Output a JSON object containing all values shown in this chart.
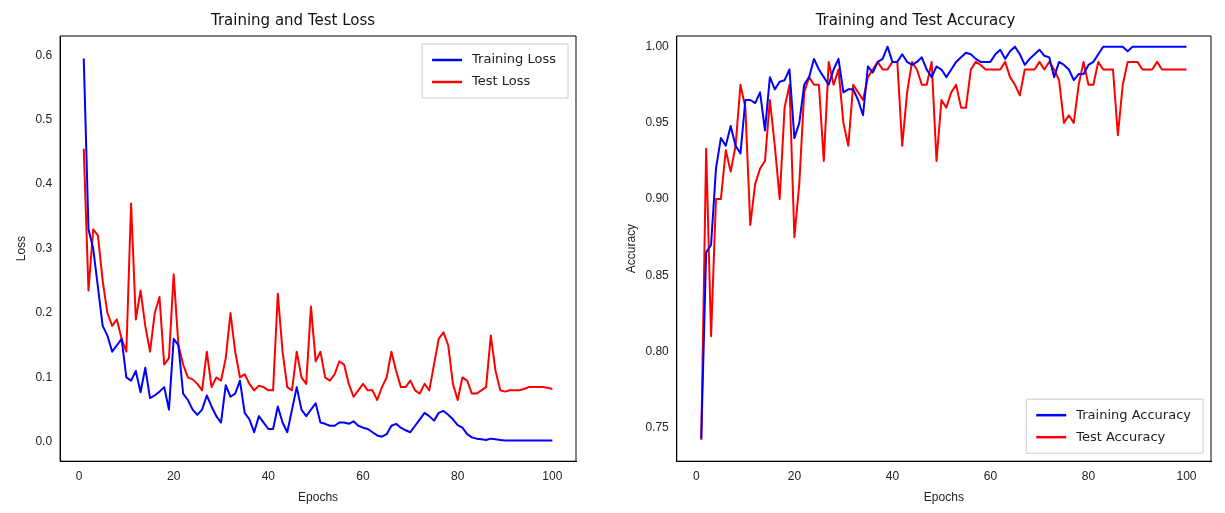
{
  "chart_data": [
    {
      "type": "line",
      "title": "Training and Test Loss",
      "xlabel": "Epochs",
      "ylabel": "Loss",
      "legend": "top right",
      "grid": false,
      "x": [
        1,
        2,
        3,
        4,
        5,
        6,
        7,
        8,
        9,
        10,
        11,
        12,
        13,
        14,
        15,
        16,
        17,
        18,
        19,
        20,
        21,
        22,
        23,
        24,
        25,
        26,
        27,
        28,
        29,
        30,
        31,
        32,
        33,
        34,
        35,
        36,
        37,
        38,
        39,
        40,
        41,
        42,
        43,
        44,
        45,
        46,
        47,
        48,
        49,
        50,
        51,
        52,
        53,
        54,
        55,
        56,
        57,
        58,
        59,
        60,
        61,
        62,
        63,
        64,
        65,
        66,
        67,
        68,
        69,
        70,
        71,
        72,
        73,
        74,
        75,
        76,
        77,
        78,
        79,
        80,
        81,
        82,
        83,
        84,
        85,
        86,
        87,
        88,
        89,
        90,
        91,
        92,
        93,
        94,
        95,
        96,
        97,
        98,
        99,
        100
      ],
      "xlim": [
        -4,
        105
      ],
      "xticks": [
        0,
        20,
        40,
        60,
        80,
        100
      ],
      "ylim": [
        -0.03,
        0.63
      ],
      "yticks": [
        {
          "value": 0,
          "label": "0.0"
        },
        {
          "value": 0.1,
          "label": "0.1"
        },
        {
          "value": 0.2,
          "label": "0.2"
        },
        {
          "value": 0.3,
          "label": "0.3"
        },
        {
          "value": 0.4,
          "label": "0.4"
        },
        {
          "value": 0.5,
          "label": "0.5"
        },
        {
          "value": 0.6,
          "label": "0.6"
        }
      ],
      "series": [
        {
          "name": "Training Loss",
          "color": "#0000ff",
          "values": [
            0.595,
            0.33,
            0.3,
            0.24,
            0.18,
            0.165,
            0.14,
            0.15,
            0.16,
            0.1,
            0.095,
            0.11,
            0.077,
            0.115,
            0.068,
            0.072,
            0.078,
            0.085,
            0.05,
            0.16,
            0.15,
            0.075,
            0.065,
            0.05,
            0.042,
            0.05,
            0.072,
            0.055,
            0.04,
            0.03,
            0.088,
            0.07,
            0.075,
            0.095,
            0.045,
            0.035,
            0.015,
            0.04,
            0.03,
            0.02,
            0.02,
            0.055,
            0.03,
            0.015,
            0.05,
            0.085,
            0.05,
            0.04,
            0.05,
            0.06,
            0.03,
            0.028,
            0.025,
            0.025,
            0.03,
            0.03,
            0.028,
            0.032,
            0.025,
            0.022,
            0.02,
            0.015,
            0.01,
            0.008,
            0.012,
            0.025,
            0.028,
            0.022,
            0.018,
            0.015,
            0.025,
            0.035,
            0.045,
            0.04,
            0.033,
            0.045,
            0.048,
            0.042,
            0.035,
            0.026,
            0.022,
            0.012,
            0.007,
            0.005,
            0.004,
            0.003,
            0.005,
            0.004,
            0.003,
            0.002,
            0.002,
            0.002,
            0.002,
            0.002,
            0.002,
            0.002,
            0.002,
            0.002,
            0.002,
            0.002
          ]
        },
        {
          "name": "Test Loss",
          "color": "#ff0000",
          "values": [
            0.455,
            0.235,
            0.33,
            0.32,
            0.25,
            0.2,
            0.18,
            0.19,
            0.16,
            0.14,
            0.37,
            0.19,
            0.235,
            0.18,
            0.14,
            0.2,
            0.225,
            0.12,
            0.13,
            0.26,
            0.15,
            0.12,
            0.1,
            0.097,
            0.09,
            0.08,
            0.14,
            0.085,
            0.1,
            0.095,
            0.13,
            0.2,
            0.14,
            0.1,
            0.105,
            0.09,
            0.08,
            0.087,
            0.085,
            0.08,
            0.08,
            0.23,
            0.14,
            0.085,
            0.08,
            0.14,
            0.1,
            0.09,
            0.21,
            0.125,
            0.14,
            0.1,
            0.095,
            0.105,
            0.125,
            0.12,
            0.09,
            0.07,
            0.08,
            0.09,
            0.08,
            0.08,
            0.065,
            0.085,
            0.1,
            0.14,
            0.11,
            0.085,
            0.085,
            0.095,
            0.08,
            0.075,
            0.09,
            0.08,
            0.12,
            0.16,
            0.17,
            0.15,
            0.09,
            0.065,
            0.1,
            0.095,
            0.075,
            0.075,
            0.08,
            0.085,
            0.165,
            0.11,
            0.08,
            0.078,
            0.08,
            0.08,
            0.08,
            0.082,
            0.085,
            0.085,
            0.085,
            0.085,
            0.084,
            0.082
          ]
        }
      ]
    },
    {
      "type": "line",
      "title": "Training and Test Accuracy",
      "xlabel": "Epochs",
      "ylabel": "Accuracy",
      "legend": "bottom right",
      "grid": false,
      "x": [
        1,
        2,
        3,
        4,
        5,
        6,
        7,
        8,
        9,
        10,
        11,
        12,
        13,
        14,
        15,
        16,
        17,
        18,
        19,
        20,
        21,
        22,
        23,
        24,
        25,
        26,
        27,
        28,
        29,
        30,
        31,
        32,
        33,
        34,
        35,
        36,
        37,
        38,
        39,
        40,
        41,
        42,
        43,
        44,
        45,
        46,
        47,
        48,
        49,
        50,
        51,
        52,
        53,
        54,
        55,
        56,
        57,
        58,
        59,
        60,
        61,
        62,
        63,
        64,
        65,
        66,
        67,
        68,
        69,
        70,
        71,
        72,
        73,
        74,
        75,
        76,
        77,
        78,
        79,
        80,
        81,
        82,
        83,
        84,
        85,
        86,
        87,
        88,
        89,
        90,
        91,
        92,
        93,
        94,
        95,
        96,
        97,
        98,
        99,
        100
      ],
      "xlim": [
        -4,
        105
      ],
      "xticks": [
        0,
        20,
        40,
        60,
        80,
        100
      ],
      "ylim": [
        0.728,
        1.007
      ],
      "yticks": [
        {
          "value": 0.75,
          "label": "0.75"
        },
        {
          "value": 0.8,
          "label": "0.80"
        },
        {
          "value": 0.85,
          "label": "0.85"
        },
        {
          "value": 0.9,
          "label": "0.90"
        },
        {
          "value": 0.95,
          "label": "0.95"
        },
        {
          "value": 1,
          "label": "1.00"
        }
      ],
      "series": [
        {
          "name": "Training Accuracy",
          "color": "#0000ff",
          "values": [
            0.743,
            0.865,
            0.87,
            0.92,
            0.94,
            0.935,
            0.948,
            0.935,
            0.93,
            0.965,
            0.965,
            0.963,
            0.97,
            0.945,
            0.98,
            0.972,
            0.977,
            0.978,
            0.985,
            0.94,
            0.95,
            0.975,
            0.98,
            0.992,
            0.985,
            0.98,
            0.975,
            0.985,
            0.992,
            0.97,
            0.972,
            0.972,
            0.965,
            0.955,
            0.987,
            0.983,
            0.99,
            0.992,
            1.0,
            0.99,
            0.99,
            0.995,
            0.99,
            0.988,
            0.99,
            0.993,
            0.985,
            0.98,
            0.987,
            0.985,
            0.98,
            0.985,
            0.99,
            0.993,
            0.996,
            0.995,
            0.992,
            0.99,
            0.99,
            0.99,
            0.995,
            0.998,
            0.992,
            0.997,
            1.0,
            0.995,
            0.988,
            0.992,
            0.995,
            0.998,
            0.994,
            0.993,
            0.98,
            0.99,
            0.988,
            0.985,
            0.978,
            0.982,
            0.982,
            0.988,
            0.99,
            0.995,
            1.0,
            1.0,
            1.0,
            1.0,
            1.0,
            0.997,
            1.0,
            1.0,
            1.0,
            1.0,
            1.0,
            1.0,
            1.0,
            1.0,
            1.0,
            1.0,
            1.0,
            1.0
          ]
        },
        {
          "name": "Test Accuracy",
          "color": "#ff0000",
          "values": [
            0.742,
            0.933,
            0.81,
            0.9,
            0.9,
            0.932,
            0.918,
            0.935,
            0.975,
            0.96,
            0.883,
            0.91,
            0.92,
            0.925,
            0.965,
            0.935,
            0.9,
            0.96,
            0.975,
            0.875,
            0.91,
            0.97,
            0.98,
            0.975,
            0.975,
            0.925,
            0.99,
            0.975,
            0.985,
            0.95,
            0.935,
            0.975,
            0.97,
            0.965,
            0.98,
            0.985,
            0.99,
            0.985,
            0.985,
            0.99,
            0.99,
            0.935,
            0.97,
            0.99,
            0.985,
            0.975,
            0.975,
            0.99,
            0.925,
            0.965,
            0.96,
            0.97,
            0.975,
            0.96,
            0.96,
            0.985,
            0.99,
            0.988,
            0.985,
            0.985,
            0.985,
            0.985,
            0.99,
            0.98,
            0.975,
            0.968,
            0.985,
            0.985,
            0.985,
            0.99,
            0.985,
            0.99,
            0.985,
            0.978,
            0.95,
            0.955,
            0.95,
            0.975,
            0.99,
            0.975,
            0.975,
            0.99,
            0.985,
            0.985,
            0.985,
            0.942,
            0.975,
            0.99,
            0.99,
            0.99,
            0.985,
            0.985,
            0.985,
            0.99,
            0.985,
            0.985,
            0.985,
            0.985,
            0.985,
            0.985
          ]
        }
      ]
    }
  ]
}
